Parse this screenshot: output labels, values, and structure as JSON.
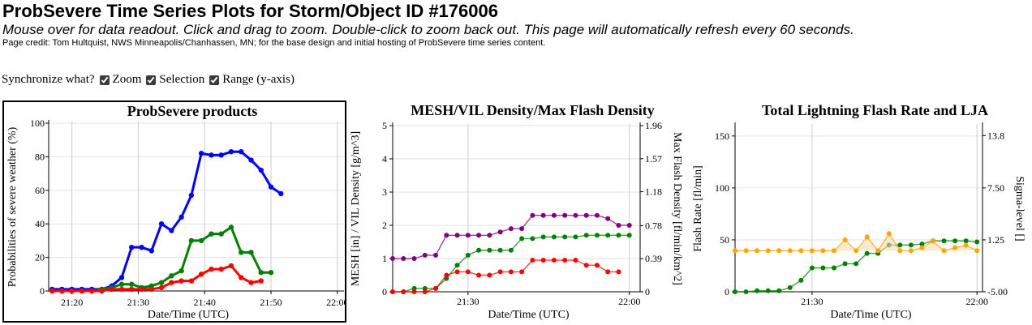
{
  "page": {
    "title": "ProbSevere Time Series Plots for Storm/Object ID #176006",
    "subtitle": "Mouse over for data readout. Click and drag to zoom. Double-click to zoom back out. This page will automatically refresh every 60 seconds.",
    "credit": "Page credit: Tom Hultquist, NWS Minneapolis/Chanhassen, MN; for the base design and initial hosting of ProbSevere time series content."
  },
  "sync": {
    "label": "Synchronize what?",
    "options": [
      {
        "label": "Zoom",
        "checked": true
      },
      {
        "label": "Selection",
        "checked": true
      },
      {
        "label": "Range (y-axis)",
        "checked": true
      }
    ]
  },
  "chart_data": [
    {
      "type": "line",
      "title": "ProbSevere products",
      "xlabel": "Date/Time (UTC)",
      "ylabel": "Probabilities of severe weather (%)",
      "x_ticks": [
        "21:20",
        "21:30",
        "21:40",
        "21:50",
        "22:00"
      ],
      "x_tick_minutes": [
        20,
        30,
        40,
        50,
        60
      ],
      "xlim_minutes": [
        16.5,
        61
      ],
      "y_ticks": [
        0,
        20,
        40,
        60,
        80,
        100
      ],
      "ylim": [
        0,
        100
      ],
      "grid": true,
      "x_minutes": [
        17,
        18.5,
        20,
        21.5,
        23,
        24.5,
        26,
        27.5,
        29,
        30.5,
        32,
        33.5,
        35,
        36.5,
        38,
        39.5,
        41,
        42.5,
        44,
        45.5,
        47,
        48.5,
        50,
        51.5,
        53,
        54.5,
        56,
        57.5,
        59,
        60.5
      ],
      "series": [
        {
          "color": "#0000ff",
          "values": [
            1,
            1,
            1,
            1,
            1,
            1,
            3,
            8,
            26,
            26,
            24,
            40,
            36,
            44,
            57,
            82,
            81,
            81,
            83,
            83,
            78,
            72,
            62,
            58,
            null,
            null,
            null,
            null,
            null,
            null
          ]
        },
        {
          "color": "#008000",
          "values": [
            0,
            0,
            0,
            0,
            0,
            1,
            2,
            4,
            4,
            2,
            3,
            5,
            9,
            12,
            30,
            30,
            34,
            34,
            38,
            23,
            23,
            11,
            11,
            null,
            null,
            null,
            null,
            null,
            null,
            null
          ]
        },
        {
          "color": "#ff0000",
          "values": [
            0,
            0,
            0,
            0,
            0,
            0,
            1,
            1,
            1,
            1,
            1,
            2,
            5,
            6,
            6,
            10,
            13,
            13,
            15,
            8,
            5,
            6,
            null,
            null,
            null,
            null,
            null,
            null,
            null,
            null
          ]
        }
      ]
    },
    {
      "type": "line",
      "title": "MESH/VIL Density/Max Flash Density",
      "xlabel": "Date/Time (UTC)",
      "ylabel": "MESH [in] / VIL Density [g/m^3]",
      "y2label": "Max Flash Density [fl/min/km^2]",
      "x_ticks": [
        "21:30",
        "22:00"
      ],
      "x_tick_minutes": [
        30,
        60
      ],
      "xlim_minutes": [
        16,
        62
      ],
      "y_ticks": [
        0,
        1,
        2,
        3,
        4,
        5
      ],
      "ylim": [
        0,
        5
      ],
      "y2_ticks": [
        "0",
        "0.39",
        "0.78",
        "1.18",
        "1.57",
        "1.96"
      ],
      "y2lim": [
        0,
        1.96
      ],
      "grid": true,
      "x_minutes": [
        16,
        18,
        20,
        22,
        24,
        26,
        28,
        30,
        32,
        34,
        36,
        38,
        40,
        42,
        44,
        46,
        48,
        50,
        52,
        54,
        56,
        58,
        60,
        62
      ],
      "series": [
        {
          "color": "#800080",
          "values": [
            1.0,
            1.0,
            1.0,
            1.1,
            1.1,
            1.7,
            1.7,
            1.7,
            1.7,
            1.7,
            1.8,
            1.9,
            1.9,
            2.3,
            2.3,
            2.3,
            2.3,
            2.3,
            2.3,
            2.3,
            2.2,
            2.0,
            2.0,
            null
          ]
        },
        {
          "color": "#008000",
          "values": [
            0.0,
            0.0,
            0.1,
            0.1,
            0.1,
            0.4,
            0.8,
            1.1,
            1.25,
            1.25,
            1.25,
            1.25,
            1.6,
            1.6,
            1.65,
            1.65,
            1.65,
            1.65,
            1.7,
            1.7,
            1.7,
            1.7,
            1.7,
            null
          ]
        },
        {
          "color": "#ff0000",
          "values": [
            0.0,
            0.0,
            0.0,
            0.0,
            0.1,
            0.5,
            0.6,
            0.6,
            0.5,
            0.5,
            0.6,
            0.6,
            0.6,
            0.95,
            0.95,
            0.95,
            0.95,
            0.95,
            0.8,
            0.8,
            0.6,
            0.6,
            null,
            null
          ]
        }
      ]
    },
    {
      "type": "area",
      "title": "Total Lightning Flash Rate and LJA",
      "xlabel": "Date/Time (UTC)",
      "ylabel": "Flash Rate [fl/min]",
      "y2label": "Sigma-level []",
      "x_ticks": [
        "21:30",
        "22:00"
      ],
      "x_tick_minutes": [
        30,
        60
      ],
      "xlim_minutes": [
        16,
        61
      ],
      "y_ticks": [
        0,
        50,
        100,
        150
      ],
      "ylim": [
        0,
        160
      ],
      "y2_ticks": [
        "-5.00",
        "1.25",
        "7.50",
        "13.8"
      ],
      "y2lim": [
        -5.0,
        15.0
      ],
      "grid": true,
      "x_minutes": [
        16,
        18,
        20,
        22,
        24,
        26,
        28,
        30,
        32,
        34,
        36,
        38,
        40,
        42,
        44,
        46,
        48,
        50,
        52,
        54,
        56,
        58,
        60
      ],
      "series": [
        {
          "color": "#008000",
          "axis": "left",
          "values": [
            0,
            0,
            1,
            1,
            1,
            4,
            11,
            23,
            23,
            23,
            27,
            27,
            37,
            37,
            45,
            45,
            45,
            46,
            49,
            49,
            49,
            49,
            48
          ]
        },
        {
          "color": "#ffa500",
          "axis": "right",
          "fill": "#f5deb3",
          "values": [
            -0.05,
            -0.05,
            -0.05,
            -0.05,
            -0.05,
            -0.05,
            -0.05,
            -0.05,
            -0.05,
            -0.05,
            1.25,
            -0.05,
            1.6,
            -0.05,
            2.0,
            -0.05,
            -0.05,
            0.3,
            1.1,
            -0.05,
            0.3,
            0.6,
            -0.05
          ]
        }
      ]
    }
  ]
}
